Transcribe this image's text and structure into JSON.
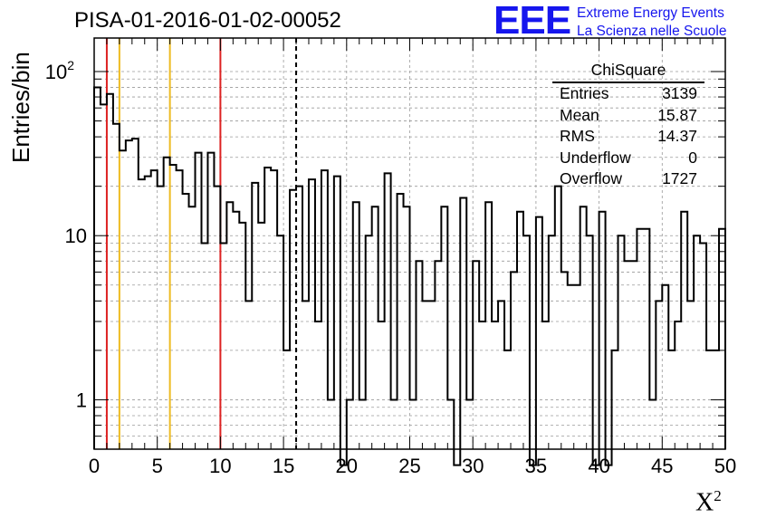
{
  "chart_data": {
    "type": "bar",
    "style": "step-histogram",
    "title": "PISA-01-2016-01-02-00052",
    "xlabel": "X",
    "xlabel_superscript": "2",
    "ylabel": "Entries/bin",
    "xlim": [
      0,
      50
    ],
    "ylim": [
      0.5,
      160
    ],
    "yscale": "log",
    "grid": true,
    "x_ticks": [
      "0",
      "5",
      "10",
      "15",
      "20",
      "25",
      "30",
      "35",
      "40",
      "45",
      "50"
    ],
    "y_ticks": [
      "1",
      "10",
      "10^2"
    ],
    "bin_width": 0.5,
    "values": [
      80,
      63,
      73,
      48,
      33,
      38,
      39,
      22,
      23,
      25,
      20,
      30,
      27,
      25,
      18,
      15,
      32,
      9,
      32,
      20,
      9,
      16,
      14,
      12,
      4,
      21,
      12,
      26,
      25,
      10,
      2,
      19,
      20,
      4,
      22,
      3,
      25,
      1,
      23,
      0.4,
      1,
      16,
      1,
      10,
      15,
      3,
      24,
      1,
      18,
      15,
      1,
      7,
      4,
      4,
      7,
      15,
      1,
      0.4,
      17,
      1,
      7,
      3,
      16,
      3,
      4,
      2,
      6,
      14,
      10,
      0.4,
      13,
      3,
      10,
      20,
      6,
      5,
      5,
      15,
      10,
      0.4,
      14,
      0.4,
      2,
      10,
      7,
      7,
      11,
      11,
      1,
      4,
      5,
      2,
      3,
      14,
      4,
      10,
      9,
      2,
      2,
      11
    ],
    "vertical_lines": [
      {
        "x": 1,
        "color": "#dd2222",
        "style": "solid"
      },
      {
        "x": 2,
        "color": "#eebb22",
        "style": "solid"
      },
      {
        "x": 6,
        "color": "#eebb22",
        "style": "solid"
      },
      {
        "x": 10,
        "color": "#dd2222",
        "style": "solid"
      },
      {
        "x": 16,
        "color": "#000000",
        "style": "dashed"
      }
    ]
  },
  "logo": {
    "mark": "EEE",
    "line1": "Extreme Energy Events",
    "line2": "La Scienza nelle Scuole",
    "color": "#1616ee"
  },
  "stats": {
    "title": "ChiSquare",
    "rows": [
      {
        "label": "Entries",
        "value": "3139"
      },
      {
        "label": "Mean",
        "value": "15.87"
      },
      {
        "label": "RMS",
        "value": "14.37"
      },
      {
        "label": "Underflow",
        "value": "0"
      },
      {
        "label": "Overflow",
        "value": "1727"
      }
    ]
  }
}
